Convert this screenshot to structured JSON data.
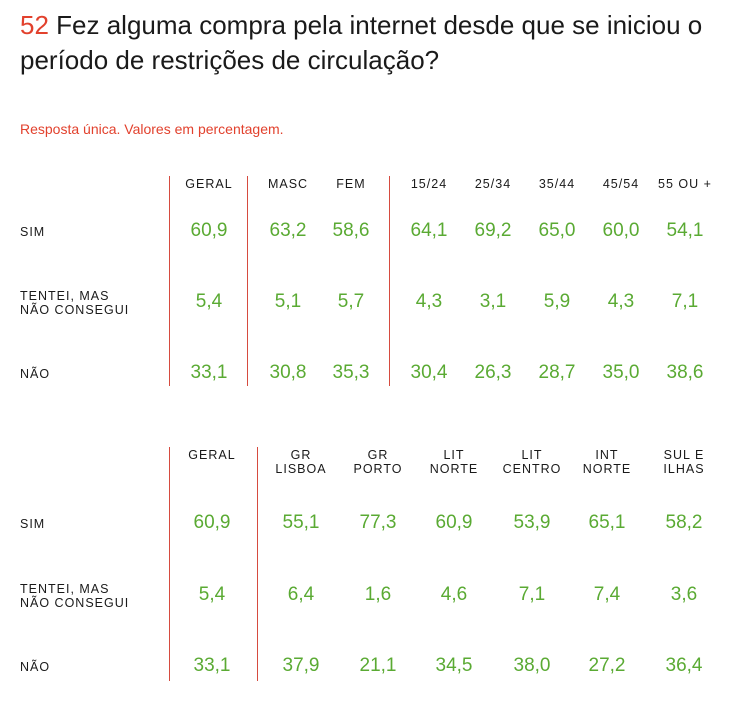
{
  "question": {
    "number": "52",
    "text": "Fez alguma compra pela internet desde que se iniciou o período de restrições de circulação?",
    "note": "Resposta única. Valores em percentagem."
  },
  "table1": {
    "columns": [
      "GERAL",
      "MASC",
      "FEM",
      "15/24",
      "25/34",
      "35/44",
      "45/54",
      "55 OU +"
    ],
    "rows": [
      {
        "label": "SIM",
        "values": [
          "60,9",
          "63,2",
          "58,6",
          "64,1",
          "69,2",
          "65,0",
          "60,0",
          "54,1"
        ]
      },
      {
        "label": "TENTEI, MAS\nNÃO CONSEGUI",
        "values": [
          "5,4",
          "5,1",
          "5,7",
          "4,3",
          "3,1",
          "5,9",
          "4,3",
          "7,1"
        ]
      },
      {
        "label": "NÃO",
        "values": [
          "33,1",
          "30,8",
          "35,3",
          "30,4",
          "26,3",
          "28,7",
          "35,0",
          "38,6"
        ]
      }
    ]
  },
  "table2": {
    "columns": [
      "GERAL",
      "GR\nLISBOA",
      "GR\nPORTO",
      "LIT\nNORTE",
      "LIT\nCENTRO",
      "INT\nNORTE",
      "SUL E\nILHAS"
    ],
    "rows": [
      {
        "label": "SIM",
        "values": [
          "60,9",
          "55,1",
          "77,3",
          "60,9",
          "53,9",
          "65,1",
          "58,2"
        ]
      },
      {
        "label": "TENTEI, MAS\nNÃO CONSEGUI",
        "values": [
          "5,4",
          "6,4",
          "1,6",
          "4,6",
          "7,1",
          "7,4",
          "3,6"
        ]
      },
      {
        "label": "NÃO",
        "values": [
          "33,1",
          "37,9",
          "21,1",
          "34,5",
          "38,0",
          "27,2",
          "36,4"
        ]
      }
    ]
  }
}
